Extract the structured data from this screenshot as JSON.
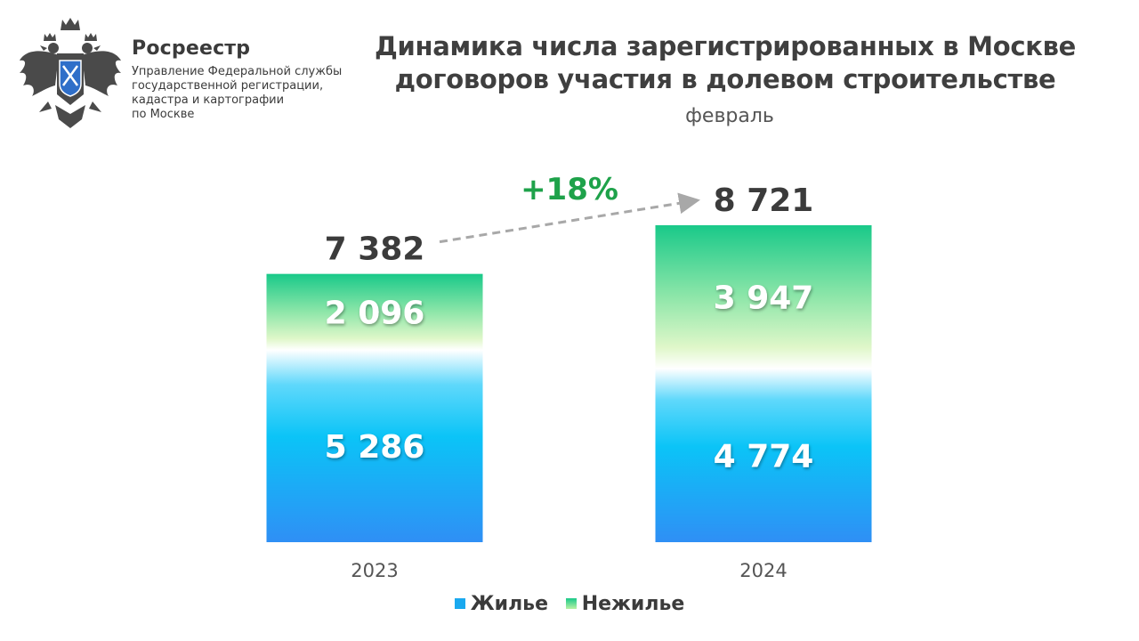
{
  "header": {
    "brand": "Росреестр",
    "org_lines": [
      "Управление Федеральной службы",
      "государственной регистрации,",
      "кадастра и картографии",
      "по Москве"
    ]
  },
  "chart_data": {
    "type": "bar",
    "stacked": true,
    "title_lines": [
      "Динамика числа зарегистрированных в Москве",
      "договоров участия в долевом строительстве"
    ],
    "subtitle": "февраль",
    "categories": [
      "2023",
      "2024"
    ],
    "series": [
      {
        "name": "Жилье",
        "values": [
          5286,
          4774
        ],
        "value_labels": [
          "5 286",
          "4 774"
        ],
        "color": "#1aa9ef"
      },
      {
        "name": "Нежилье",
        "values": [
          2096,
          3947
        ],
        "value_labels": [
          "2 096",
          "3 947"
        ],
        "color": "#19c989"
      }
    ],
    "totals": [
      7382,
      8721
    ],
    "total_labels": [
      "7 382",
      "8 721"
    ],
    "change_label": "+18%",
    "change_color": "#1ea24a",
    "legend_position": "bottom",
    "grid": false,
    "ylim": [
      0,
      8721
    ]
  },
  "icons": {
    "emblem": "double-headed-eagle-emblem-icon"
  }
}
